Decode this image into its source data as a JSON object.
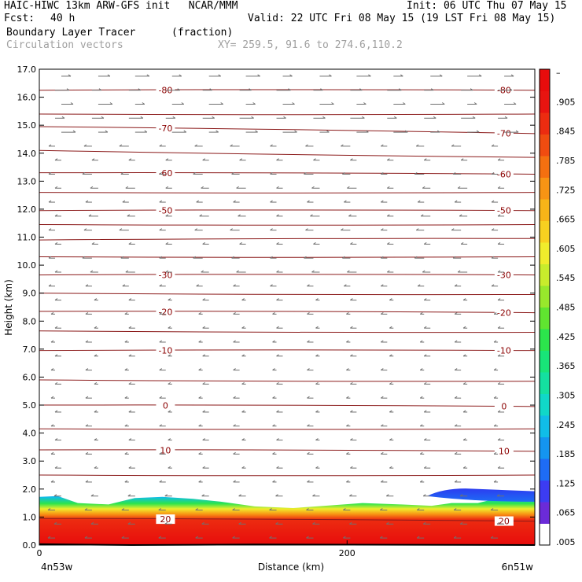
{
  "header": {
    "title": "HAIC-HIWC 13km ARW-GFS init   NCAR/MMM",
    "init": "Init: 06 UTC Thu 07 May 15",
    "fcst_label": "Fcst:",
    "fcst_value": "40 h",
    "valid": "Valid: 22 UTC Fri 08 May 15 (19 LST Fri 08 May 15)",
    "field_name": "Boundary Layer Tracer",
    "field_unit": "(fraction)",
    "vector_name": "Circulation vectors",
    "cross_section": "XY= 259.5, 91.6 to 274.6,110.2"
  },
  "chart_data": {
    "type": "heatmap",
    "title": "",
    "xlabel": "Distance (km)",
    "ylabel": "Height (km)",
    "xlim": [
      0,
      322
    ],
    "ylim": [
      0,
      17
    ],
    "x_ticks": [
      {
        "value": 0,
        "label": "0"
      },
      {
        "value": 200,
        "label": "200"
      }
    ],
    "y_ticks": [
      {
        "value": 0,
        "label": "0.0"
      },
      {
        "value": 1,
        "label": "1.0"
      },
      {
        "value": 2,
        "label": "2.0"
      },
      {
        "value": 3,
        "label": "3.0"
      },
      {
        "value": 4,
        "label": "4.0"
      },
      {
        "value": 5,
        "label": "5.0"
      },
      {
        "value": 6,
        "label": "6.0"
      },
      {
        "value": 7,
        "label": "7.0"
      },
      {
        "value": 8,
        "label": "8.0"
      },
      {
        "value": 9,
        "label": "9.0"
      },
      {
        "value": 10,
        "label": "10.0"
      },
      {
        "value": 11,
        "label": "11.0"
      },
      {
        "value": 12,
        "label": "12.0"
      },
      {
        "value": 13,
        "label": "13.0"
      },
      {
        "value": 14,
        "label": "14.0"
      },
      {
        "value": 15,
        "label": "15.0"
      },
      {
        "value": 16,
        "label": "16.0"
      },
      {
        "value": 17,
        "label": "17.0"
      }
    ],
    "x_end_labels": {
      "left": "4n53w",
      "right": "6n51w"
    },
    "colorbar": {
      "colors": [
        "#ffffff",
        "#6b2bd8",
        "#3c3cf2",
        "#1e6cf5",
        "#1495f0",
        "#10bde8",
        "#10d8c8",
        "#14e0a0",
        "#18e478",
        "#2ce44c",
        "#60e430",
        "#98e82c",
        "#c8ec2c",
        "#f0ec2c",
        "#f8d020",
        "#f8b418",
        "#f89414",
        "#f47010",
        "#f04c10",
        "#ec2c10",
        "#e81410",
        "#e80c0c"
      ],
      "labels": [
        ".005",
        ".065",
        ".125",
        ".185",
        ".245",
        ".305",
        ".365",
        ".425",
        ".485",
        ".545",
        ".605",
        ".665",
        ".725",
        ".785",
        ".845",
        ".905",
        "–"
      ]
    },
    "tracer_top_km": [
      {
        "x": 0,
        "top": 1.72,
        "lower": 1.55
      },
      {
        "x": 12,
        "top": 1.75,
        "lower": 1.6
      },
      {
        "x": 25,
        "top": 1.5,
        "lower": 1.45
      },
      {
        "x": 45,
        "top": 1.45,
        "lower": 1.4
      },
      {
        "x": 62,
        "top": 1.68,
        "lower": 1.55
      },
      {
        "x": 80,
        "top": 1.72,
        "lower": 1.6
      },
      {
        "x": 100,
        "top": 1.65,
        "lower": 1.55
      },
      {
        "x": 118,
        "top": 1.55,
        "lower": 1.4
      },
      {
        "x": 140,
        "top": 1.38,
        "lower": 1.3
      },
      {
        "x": 165,
        "top": 1.32,
        "lower": 1.2
      },
      {
        "x": 190,
        "top": 1.42,
        "lower": 1.3
      },
      {
        "x": 210,
        "top": 1.5,
        "lower": 1.4
      },
      {
        "x": 235,
        "top": 1.45,
        "lower": 1.35
      },
      {
        "x": 255,
        "top": 1.4,
        "lower": 1.3
      },
      {
        "x": 268,
        "top": 1.5,
        "lower": 1.35
      },
      {
        "x": 285,
        "top": 1.5,
        "lower": 1.4
      },
      {
        "x": 300,
        "top": 1.7,
        "lower": 1.45
      },
      {
        "x": 322,
        "top": 1.9,
        "lower": 1.5
      }
    ],
    "elevated_blob": {
      "x_start": 252,
      "x_end": 322,
      "top": 2.02,
      "bottom": 1.55
    },
    "temperature_contours": [
      {
        "label": "-80",
        "y_left": 16.25,
        "y_right": 16.25
      },
      {
        "label": "",
        "y_left": 15.4,
        "y_right": 15.4
      },
      {
        "label": "-70",
        "y_left": 14.95,
        "y_right": 14.7
      },
      {
        "label": "",
        "y_left": 14.1,
        "y_right": 13.85
      },
      {
        "label": "-60",
        "y_left": 13.3,
        "y_right": 13.25
      },
      {
        "label": "",
        "y_left": 12.6,
        "y_right": 12.6
      },
      {
        "label": "-50",
        "y_left": 11.95,
        "y_right": 11.95
      },
      {
        "label": "",
        "y_left": 11.45,
        "y_right": 11.45
      },
      {
        "label": "",
        "y_left": 10.9,
        "y_right": 10.95
      },
      {
        "label": "",
        "y_left": 10.3,
        "y_right": 10.3
      },
      {
        "label": "-30",
        "y_left": 9.65,
        "y_right": 9.65
      },
      {
        "label": "",
        "y_left": 9.0,
        "y_right": 8.95
      },
      {
        "label": "-20",
        "y_left": 8.35,
        "y_right": 8.3
      },
      {
        "label": "",
        "y_left": 7.65,
        "y_right": 7.6
      },
      {
        "label": "-10",
        "y_left": 6.95,
        "y_right": 6.95
      },
      {
        "label": "",
        "y_left": 5.9,
        "y_right": 5.85
      },
      {
        "label": "0",
        "y_left": 5.0,
        "y_right": 4.95
      },
      {
        "label": "",
        "y_left": 4.15,
        "y_right": 4.15
      },
      {
        "label": "10",
        "y_left": 3.4,
        "y_right": 3.35
      },
      {
        "label": "",
        "y_left": 2.5,
        "y_right": 2.5
      },
      {
        "label": "20",
        "y_left": 0.95,
        "y_right": 0.85
      }
    ],
    "vector_grid": {
      "x_columns": 13,
      "y_rows": 34
    }
  }
}
